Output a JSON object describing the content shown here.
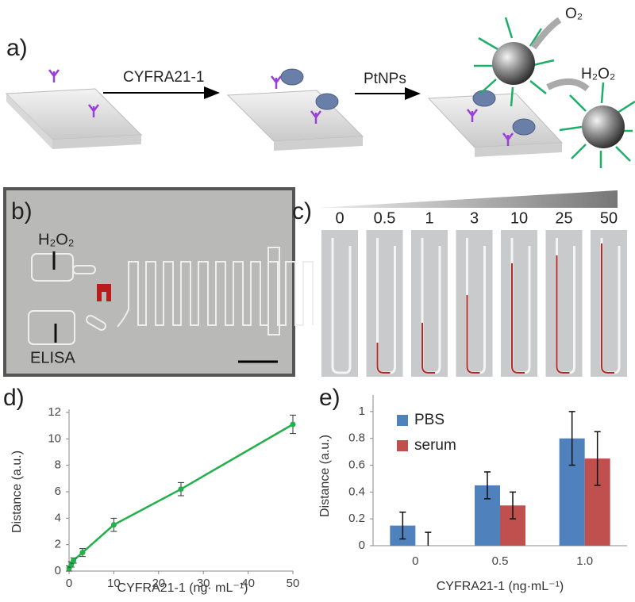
{
  "panels": {
    "a": {
      "label": "a)",
      "step1": "CYFRA21-1",
      "step2": "PtNPs",
      "product": "O₂",
      "reactant": "H₂O₂"
    },
    "b": {
      "label": "b)",
      "inlet1": "H₂O₂",
      "inlet2": "ELISA"
    },
    "c": {
      "label": "c)",
      "concentrations": [
        "0",
        "0.5",
        "1",
        "3",
        "10",
        "25",
        "50"
      ]
    },
    "d": {
      "label": "d)"
    },
    "e": {
      "label": "e)"
    }
  },
  "chart_data": [
    {
      "type": "line",
      "x": [
        0,
        0.5,
        1,
        3,
        10,
        25,
        50
      ],
      "series": [
        {
          "name": "Distance",
          "color": "#22b04b",
          "values": [
            0.2,
            0.5,
            0.8,
            1.4,
            3.5,
            6.2,
            11.1
          ],
          "errors": [
            0.2,
            0.2,
            0.2,
            0.3,
            0.5,
            0.5,
            0.7
          ]
        }
      ],
      "xlim": [
        0,
        50
      ],
      "xticks": [
        0,
        10,
        20,
        30,
        40,
        50
      ],
      "ylim": [
        0,
        12
      ],
      "yticks": [
        0,
        2,
        4,
        6,
        8,
        10,
        12
      ],
      "x_label": "CYFRA21-1 (ng· mL⁻¹)",
      "y_label": "Distance (a.u.)"
    },
    {
      "type": "bar",
      "categories": [
        "0",
        "0.5",
        "1.0"
      ],
      "series": [
        {
          "name": "PBS",
          "color": "#4f81bd",
          "values": [
            0.15,
            0.45,
            0.8
          ],
          "errors": [
            0.1,
            0.1,
            0.2
          ]
        },
        {
          "name": "serum",
          "color": "#c0504d",
          "values": [
            0,
            0.3,
            0.65
          ],
          "errors": [
            0.1,
            0.1,
            0.2
          ]
        }
      ],
      "ylim": [
        0,
        1.1
      ],
      "yticks": [
        0,
        0.2,
        0.4,
        0.6,
        0.8,
        1
      ],
      "x_label": "CYFRA21-1 (ng·mL⁻¹)",
      "y_label": "Distance (a.u.)",
      "legend": "upper-left"
    }
  ]
}
